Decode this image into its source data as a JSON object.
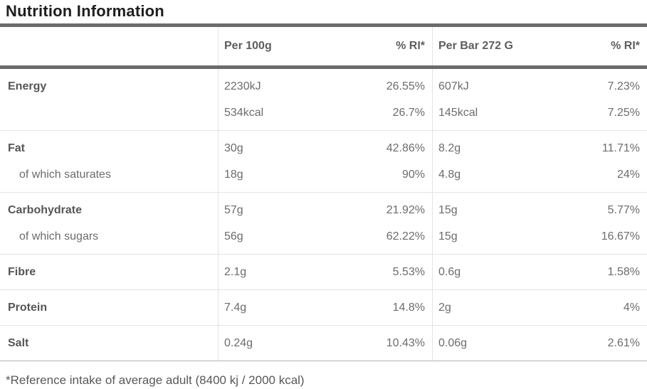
{
  "title": "Nutrition Information",
  "table": {
    "headers": [
      "",
      "Per 100g",
      "% RI*",
      "Per Bar 272 G",
      "% RI*"
    ],
    "groups": [
      {
        "rows": [
          {
            "label": "Energy",
            "bold": true,
            "indent": false,
            "per_100g": "2230kJ",
            "ri_100g": "26.55%",
            "per_bar": "607kJ",
            "ri_bar": "7.23%"
          },
          {
            "label": "",
            "bold": false,
            "indent": false,
            "per_100g": "534kcal",
            "ri_100g": "26.7%",
            "per_bar": "145kcal",
            "ri_bar": "7.25%"
          }
        ]
      },
      {
        "rows": [
          {
            "label": "Fat",
            "bold": true,
            "indent": false,
            "per_100g": "30g",
            "ri_100g": "42.86%",
            "per_bar": "8.2g",
            "ri_bar": "11.71%"
          },
          {
            "label": "of which saturates",
            "bold": false,
            "indent": true,
            "per_100g": "18g",
            "ri_100g": "90%",
            "per_bar": "4.8g",
            "ri_bar": "24%"
          }
        ]
      },
      {
        "rows": [
          {
            "label": "Carbohydrate",
            "bold": true,
            "indent": false,
            "per_100g": "57g",
            "ri_100g": "21.92%",
            "per_bar": "15g",
            "ri_bar": "5.77%"
          },
          {
            "label": "of which sugars",
            "bold": false,
            "indent": true,
            "per_100g": "56g",
            "ri_100g": "62.22%",
            "per_bar": "15g",
            "ri_bar": "16.67%"
          }
        ]
      },
      {
        "rows": [
          {
            "label": "Fibre",
            "bold": true,
            "indent": false,
            "per_100g": "2.1g",
            "ri_100g": "5.53%",
            "per_bar": "0.6g",
            "ri_bar": "1.58%"
          }
        ]
      },
      {
        "rows": [
          {
            "label": "Protein",
            "bold": true,
            "indent": false,
            "per_100g": "7.4g",
            "ri_100g": "14.8%",
            "per_bar": "2g",
            "ri_bar": "4%"
          }
        ]
      },
      {
        "rows": [
          {
            "label": "Salt",
            "bold": true,
            "indent": false,
            "per_100g": "0.24g",
            "ri_100g": "10.43%",
            "per_bar": "0.06g",
            "ri_bar": "2.61%"
          }
        ]
      }
    ]
  },
  "footnote": "*Reference intake of average adult (8400 kj / 2000 kcal)"
}
